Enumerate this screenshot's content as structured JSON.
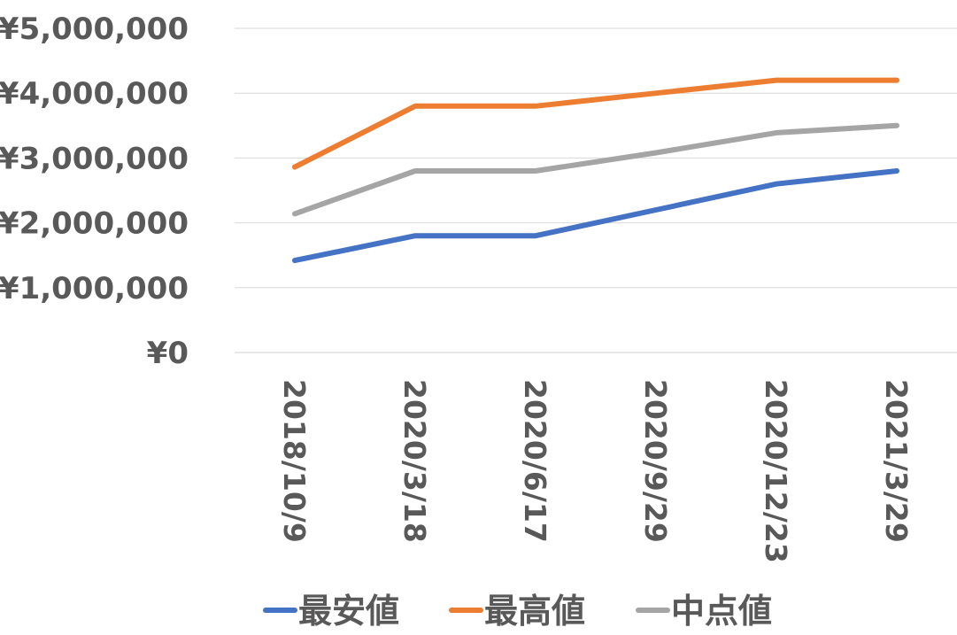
{
  "chart_data": {
    "type": "line",
    "title": "",
    "xlabel": "",
    "ylabel": "",
    "categories": [
      "2018/10/9",
      "2020/3/18",
      "2020/6/17",
      "2020/9/29",
      "2020/12/23",
      "2021/3/29"
    ],
    "ylim": [
      0,
      5000000
    ],
    "yticks": [
      0,
      1000000,
      2000000,
      3000000,
      4000000,
      5000000
    ],
    "ytick_labels": [
      "¥0",
      "¥1,000,000",
      "¥2,000,000",
      "¥3,000,000",
      "¥4,000,000",
      "¥5,000,000"
    ],
    "grid": true,
    "legend_position": "bottom",
    "series": [
      {
        "name": "最安値",
        "color": "#4472C4",
        "values": [
          1420000,
          1800000,
          1800000,
          2200000,
          2600000,
          2800000
        ]
      },
      {
        "name": "最高値",
        "color": "#ED7D31",
        "values": [
          2860000,
          3800000,
          3800000,
          4000000,
          4200000,
          4200000
        ]
      },
      {
        "name": "中点値",
        "color": "#A5A5A5",
        "values": [
          2140000,
          2800000,
          2800000,
          3080000,
          3390000,
          3500000
        ]
      }
    ]
  }
}
